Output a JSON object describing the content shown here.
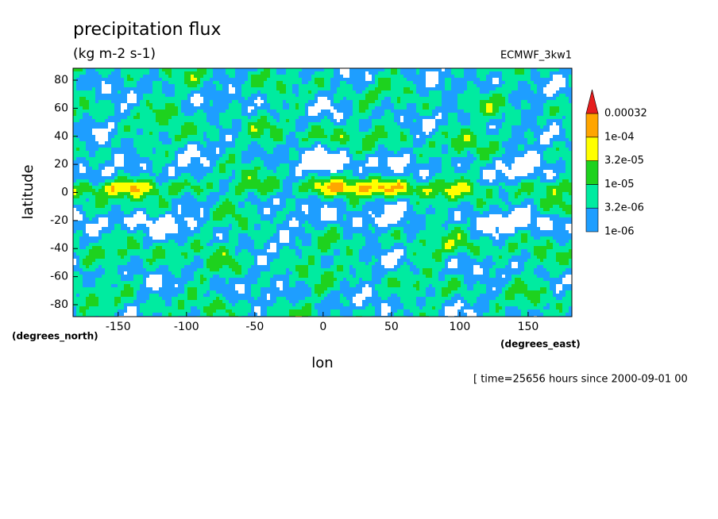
{
  "chart_data": {
    "type": "contour",
    "title": "precipitation flux",
    "subtitle": "(kg m-2 s-1)",
    "dataset": "ECMWF_3kw1",
    "xlabel": "lon",
    "ylabel": "latitude",
    "x_units": "(degrees_east)",
    "y_units": "(degrees_north)",
    "footnote": "[ time=25656 hours since 2000-09-01 00",
    "xlim": [
      -183,
      182
    ],
    "ylim": [
      -88.5,
      88.5
    ],
    "xticks": [
      -150,
      -100,
      -50,
      0,
      50,
      100,
      150
    ],
    "yticks": [
      -80,
      -60,
      -40,
      -20,
      0,
      20,
      40,
      60,
      80
    ],
    "levels": [
      {
        "value": 1e-06,
        "label": "1e-06"
      },
      {
        "value": 3.2e-06,
        "label": "3.2e-06"
      },
      {
        "value": 1e-05,
        "label": "1e-05"
      },
      {
        "value": 3.2e-05,
        "label": "3.2e-05"
      },
      {
        "value": 0.0001,
        "label": "1e-04"
      },
      0.00032
    ],
    "colors": [
      "#1e9eff",
      "#00eba0",
      "#1ed21e",
      "#ffff00",
      "#ffa500",
      "#e61e1e"
    ]
  }
}
